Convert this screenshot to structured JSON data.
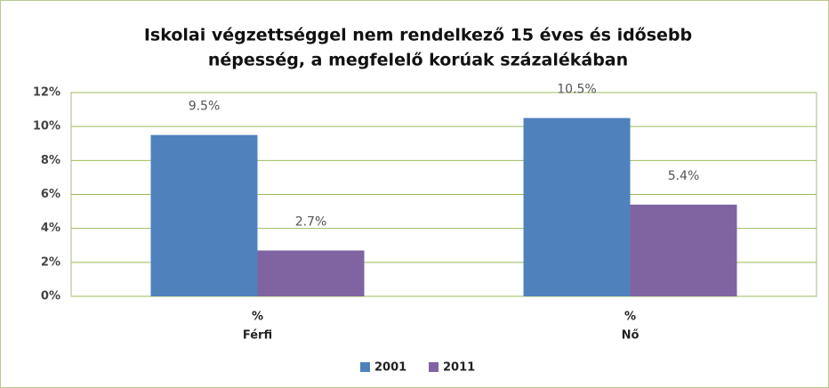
{
  "chart_data": {
    "type": "bar",
    "title": [
      "Iskolai végzettséggel nem rendelkező 15 éves és idősebb",
      "népesség, a megfelelő korúak százalékában"
    ],
    "categories": [
      [
        "%",
        "Férfi"
      ],
      [
        "%",
        "Nő"
      ]
    ],
    "series": [
      {
        "name": "2001",
        "color": "#4f81bd",
        "values": [
          9.5,
          10.5
        ],
        "value_labels": [
          "9.5%",
          "10.5%"
        ]
      },
      {
        "name": "2011",
        "color": "#8064a2",
        "values": [
          2.7,
          5.4
        ],
        "value_labels": [
          "2.7%",
          "5.4%"
        ]
      }
    ],
    "ylim": [
      0,
      12
    ],
    "yticks": [
      {
        "value": 0,
        "label": "0%"
      },
      {
        "value": 2,
        "label": "2%"
      },
      {
        "value": 4,
        "label": "4%"
      },
      {
        "value": 6,
        "label": "6%"
      },
      {
        "value": 8,
        "label": "8%"
      },
      {
        "value": 10,
        "label": "10%"
      },
      {
        "value": 12,
        "label": "12%"
      }
    ],
    "grid": true,
    "legend": "bottom"
  }
}
